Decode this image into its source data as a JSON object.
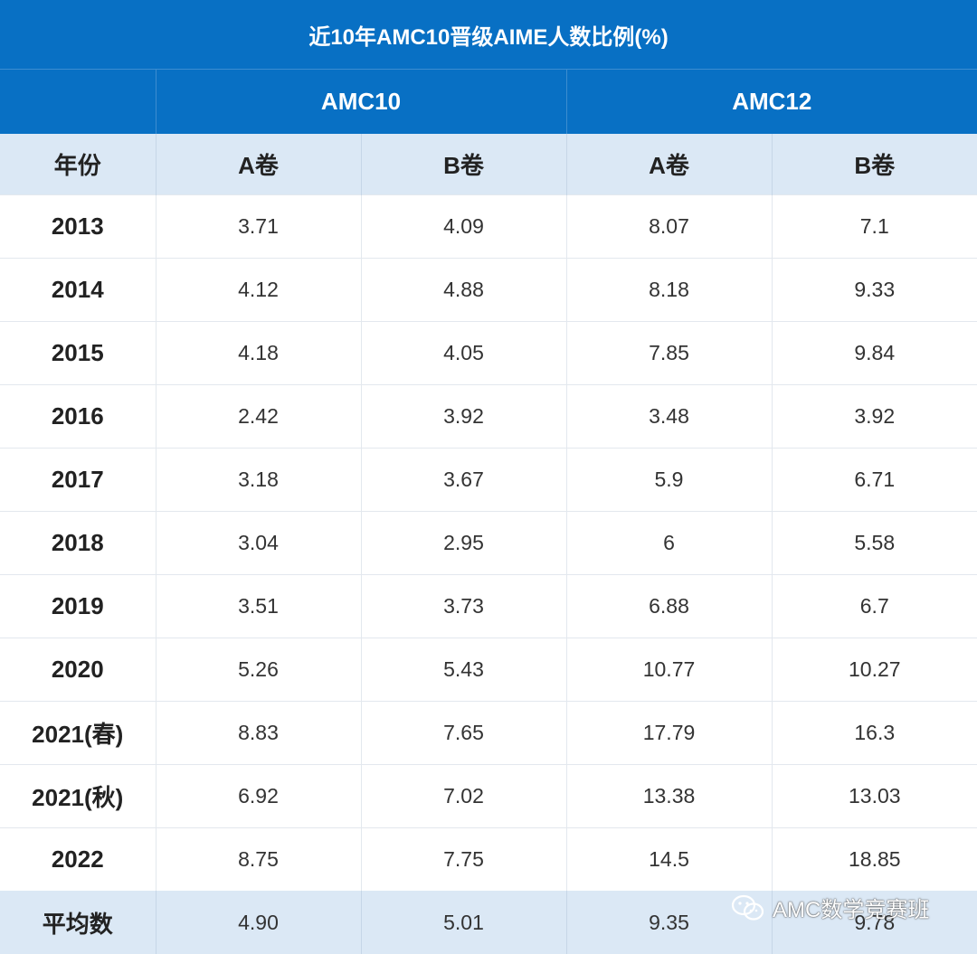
{
  "table": {
    "title": "近10年AMC10晋级AIME人数比例(%)",
    "groups": [
      "AMC10",
      "AMC12"
    ],
    "subheaders": [
      "年份",
      "A卷",
      "B卷",
      "A卷",
      "B卷"
    ],
    "rows": [
      [
        "2013",
        "3.71",
        "4.09",
        "8.07",
        "7.1"
      ],
      [
        "2014",
        "4.12",
        "4.88",
        "8.18",
        "9.33"
      ],
      [
        "2015",
        "4.18",
        "4.05",
        "7.85",
        "9.84"
      ],
      [
        "2016",
        "2.42",
        "3.92",
        "3.48",
        "3.92"
      ],
      [
        "2017",
        "3.18",
        "3.67",
        "5.9",
        "6.71"
      ],
      [
        "2018",
        "3.04",
        "2.95",
        "6",
        "5.58"
      ],
      [
        "2019",
        "3.51",
        "3.73",
        "6.88",
        "6.7"
      ],
      [
        "2020",
        "5.26",
        "5.43",
        "10.77",
        "10.27"
      ],
      [
        "2021(春)",
        "8.83",
        "7.65",
        "17.79",
        "16.3"
      ],
      [
        "2021(秋)",
        "6.92",
        "7.02",
        "13.38",
        "13.03"
      ],
      [
        "2022",
        "8.75",
        "7.75",
        "14.5",
        "18.85"
      ]
    ],
    "average": [
      "平均数",
      "4.90",
      "5.01",
      "9.35",
      "9.78"
    ]
  },
  "watermark": {
    "text": "AMC数学竞赛班",
    "icon": "wechat-icon"
  },
  "colors": {
    "header_blue": "#0870c4",
    "subheader_light_blue": "#dbe8f5"
  }
}
